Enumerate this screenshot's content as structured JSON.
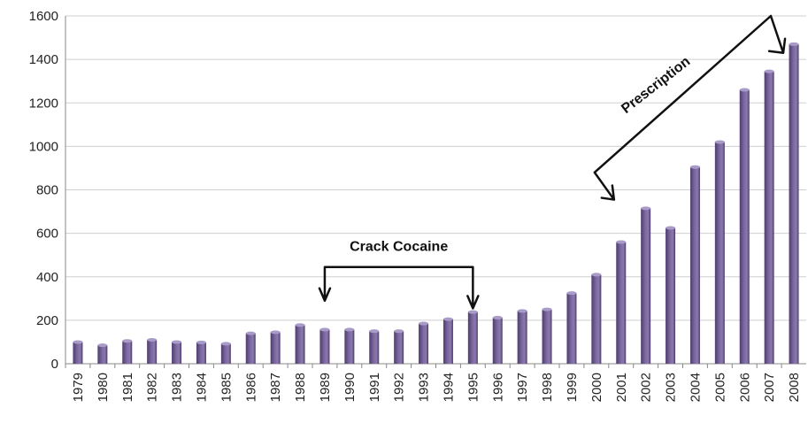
{
  "chart_data": {
    "type": "bar",
    "categories": [
      "1979",
      "1980",
      "1981",
      "1982",
      "1983",
      "1984",
      "1985",
      "1986",
      "1987",
      "1988",
      "1989",
      "1990",
      "1991",
      "1992",
      "1993",
      "1994",
      "1995",
      "1996",
      "1997",
      "1998",
      "1999",
      "2000",
      "2001",
      "2002",
      "2003",
      "2004",
      "2005",
      "2006",
      "2007",
      "2008"
    ],
    "values": [
      100,
      85,
      105,
      110,
      100,
      98,
      92,
      140,
      145,
      178,
      157,
      157,
      150,
      150,
      185,
      205,
      238,
      212,
      243,
      250,
      325,
      410,
      560,
      715,
      625,
      905,
      1020,
      1260,
      1345,
      1470
    ],
    "title": "",
    "xlabel": "",
    "ylabel": "",
    "ylim": [
      0,
      1600
    ],
    "yticks": [
      0,
      200,
      400,
      600,
      800,
      1000,
      1200,
      1400,
      1600
    ],
    "grid": true,
    "bar_color": "#6e5a8f",
    "bar_highlight": "#a99bc7",
    "annotations": [
      {
        "text": "Crack Cocaine",
        "from": "1989",
        "to": "1995"
      },
      {
        "text": "Prescription",
        "from": "2000",
        "to": "2008"
      }
    ]
  }
}
